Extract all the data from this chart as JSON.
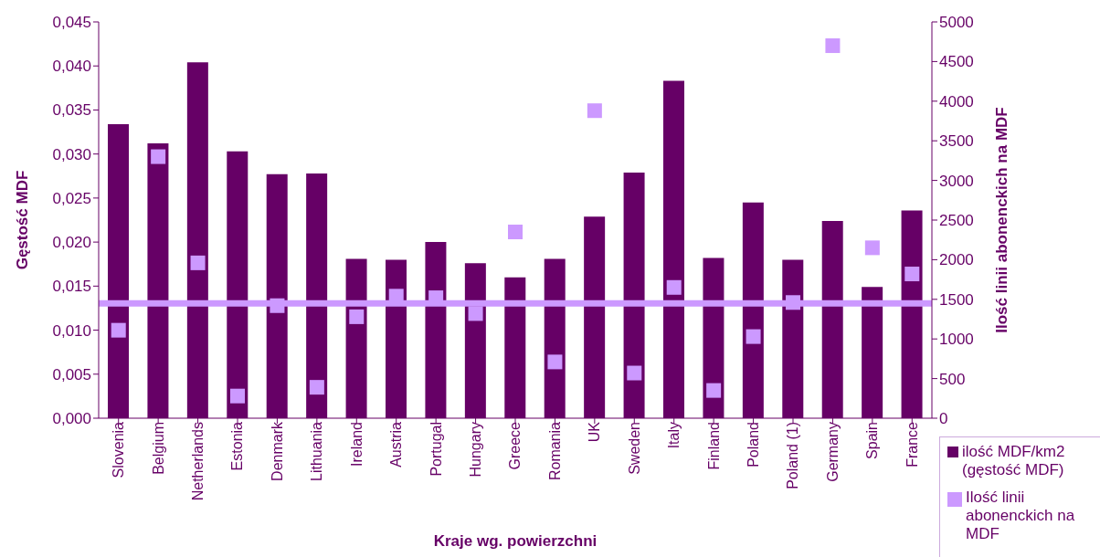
{
  "chart_data": {
    "type": "bar",
    "xlabel": "Kraje wg. powierzchni",
    "ylabel": "Gęstość MDF",
    "y2label": "Ilość linii abonenckich na MDF",
    "categories": [
      "Slovenia",
      "Belgium",
      "Netherlands",
      "Estonia",
      "Denmark",
      "Lithuania",
      "Ireland",
      "Austria",
      "Portugal",
      "Hungary",
      "Greece",
      "Romania",
      "UK",
      "Sweden",
      "Italy",
      "Finland",
      "Poland",
      "Poland (1)",
      "Germany",
      "Spain",
      "France"
    ],
    "series": [
      {
        "name": "ilość MDF/km2 (gęstość MDF)",
        "color": "#660066",
        "values": [
          0.0334,
          0.0312,
          0.0404,
          0.0303,
          0.0277,
          0.0278,
          0.0181,
          0.018,
          0.02,
          0.0176,
          0.016,
          0.0181,
          0.0229,
          0.0279,
          0.0383,
          0.0182,
          0.0245,
          0.018,
          0.0224,
          0.0149,
          0.0236
        ]
      },
      {
        "name": "Ilość linii abonenckich na MDF",
        "type": "scatter",
        "axis": "y2",
        "marker": "square",
        "color": "#cc99ff",
        "values": [
          1110,
          3300,
          1960,
          280,
          1420,
          390,
          1280,
          1540,
          1520,
          1320,
          2350,
          710,
          3880,
          570,
          1650,
          350,
          1030,
          1460,
          4700,
          2150,
          1820
        ]
      }
    ],
    "ylim": [
      0,
      0.045
    ],
    "yticks": [
      {
        "value": 0,
        "label": "0,000"
      },
      {
        "value": 0.005,
        "label": "0,005"
      },
      {
        "value": 0.01,
        "label": "0,010"
      },
      {
        "value": 0.015,
        "label": "0,015"
      },
      {
        "value": 0.02,
        "label": "0,020"
      },
      {
        "value": 0.025,
        "label": "0,025"
      },
      {
        "value": 0.03,
        "label": "0,030"
      },
      {
        "value": 0.035,
        "label": "0,035"
      },
      {
        "value": 0.04,
        "label": "0,040"
      },
      {
        "value": 0.045,
        "label": "0,045"
      }
    ],
    "y2lim": [
      0,
      5000
    ],
    "y2ticks": [
      0,
      500,
      1000,
      1500,
      2000,
      2500,
      3000,
      3500,
      4000,
      4500,
      5000
    ],
    "ref_lines": [
      {
        "axis": "y2",
        "value": 1450,
        "color": "#cc99ff"
      }
    ],
    "grid": false,
    "legend": "bottom right"
  }
}
